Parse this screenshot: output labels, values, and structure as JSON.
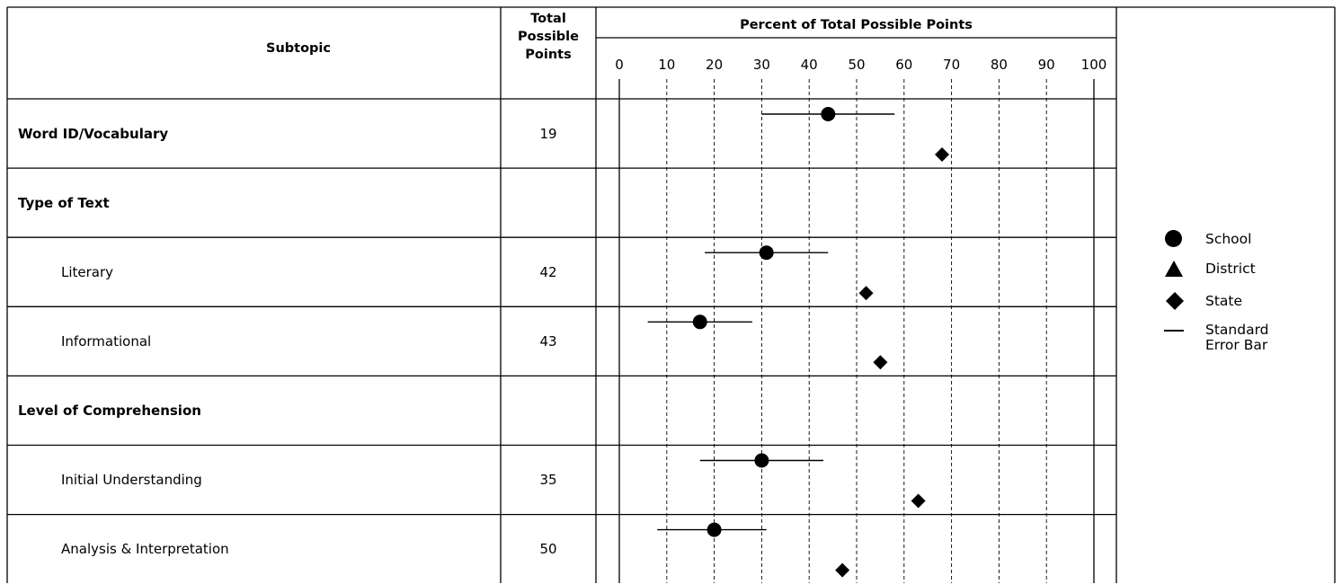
{
  "header": {
    "subtopic": "Subtopic",
    "total_points": [
      "Total",
      "Possible",
      "Points"
    ],
    "percent_title": "Percent of Total Possible Points"
  },
  "rows": [
    {
      "label": "Word ID/Vocabulary",
      "points": "19",
      "bold": true,
      "indent": false
    },
    {
      "label": "Type of Text",
      "points": "",
      "bold": true,
      "indent": false
    },
    {
      "label": "Literary",
      "points": "42",
      "bold": false,
      "indent": true
    },
    {
      "label": "Informational",
      "points": "43",
      "bold": false,
      "indent": true
    },
    {
      "label": "Level of Comprehension",
      "points": "",
      "bold": true,
      "indent": false
    },
    {
      "label": "Initial Understanding",
      "points": "35",
      "bold": false,
      "indent": true
    },
    {
      "label": "Analysis & Interpretation",
      "points": "50",
      "bold": false,
      "indent": true
    }
  ],
  "legend": {
    "school": "School",
    "district": "District",
    "state": "State",
    "error_bar": [
      "Standard",
      "Error Bar"
    ]
  },
  "chart_data": {
    "type": "scatter",
    "title": "Percent of Total Possible Points",
    "xlabel": "",
    "xlim": [
      0,
      100
    ],
    "ticks": [
      0,
      10,
      20,
      30,
      40,
      50,
      60,
      70,
      80,
      90,
      100
    ],
    "grid": true,
    "legend_placement": "right",
    "categories": [
      "Word ID/Vocabulary",
      "Type of Text",
      "Literary",
      "Informational",
      "Level of Comprehension",
      "Initial Understanding",
      "Analysis & Interpretation"
    ],
    "series": [
      {
        "name": "School",
        "marker": "circle",
        "values": [
          44,
          null,
          31,
          17,
          null,
          30,
          20
        ],
        "error_low": [
          30,
          null,
          18,
          6,
          null,
          17,
          8
        ],
        "error_high": [
          58,
          null,
          44,
          28,
          null,
          43,
          31
        ]
      },
      {
        "name": "District",
        "marker": "triangle",
        "values": [
          null,
          null,
          null,
          null,
          null,
          null,
          null
        ]
      },
      {
        "name": "State",
        "marker": "diamond",
        "values": [
          68,
          null,
          52,
          55,
          null,
          63,
          47
        ]
      }
    ]
  }
}
